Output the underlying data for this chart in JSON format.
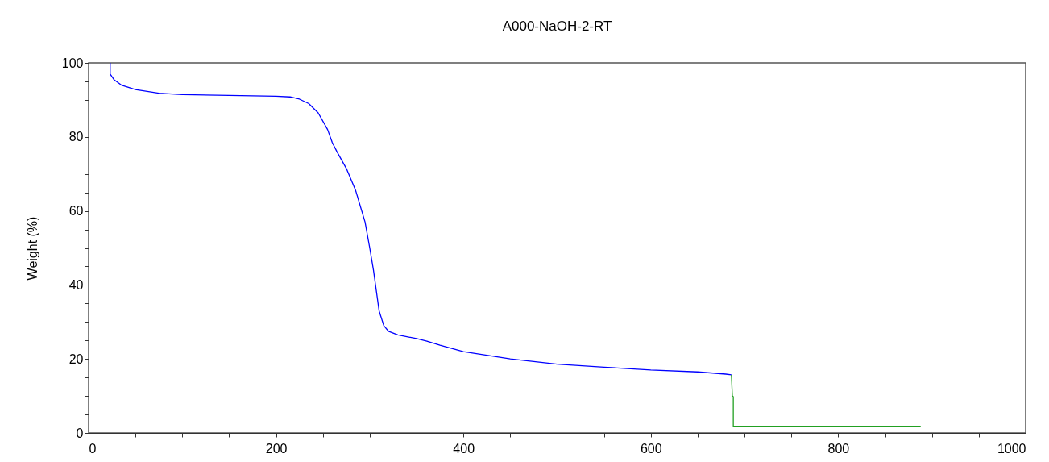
{
  "chart_data": {
    "type": "line",
    "title": "A000-NaOH-2-RT",
    "ylabel": "Weight (%)",
    "xlim": [
      0,
      1000
    ],
    "ylim": [
      0,
      100
    ],
    "xticks": [
      0,
      {
        "value": 50,
        "label": null
      },
      {
        "value": 100,
        "label": null
      },
      {
        "value": 150,
        "label": null
      },
      200,
      {
        "value": 250,
        "label": null
      },
      {
        "value": 300,
        "label": null
      },
      {
        "value": 350,
        "label": null
      },
      400,
      {
        "value": 450,
        "label": null
      },
      {
        "value": 500,
        "label": null
      },
      {
        "value": 550,
        "label": null
      },
      600,
      {
        "value": 650,
        "label": null
      },
      {
        "value": 700,
        "label": null
      },
      {
        "value": 750,
        "label": null
      },
      800,
      {
        "value": 850,
        "label": null
      },
      {
        "value": 900,
        "label": null
      },
      {
        "value": 950,
        "label": null
      },
      1000
    ],
    "yticks": [
      0,
      {
        "value": 5,
        "label": null
      },
      {
        "value": 10,
        "label": null
      },
      {
        "value": 15,
        "label": null
      },
      20,
      {
        "value": 25,
        "label": null
      },
      {
        "value": 30,
        "label": null
      },
      {
        "value": 35,
        "label": null
      },
      40,
      {
        "value": 45,
        "label": null
      },
      {
        "value": 50,
        "label": null
      },
      {
        "value": 55,
        "label": null
      },
      60,
      {
        "value": 65,
        "label": null
      },
      {
        "value": 70,
        "label": null
      },
      {
        "value": 75,
        "label": null
      },
      80,
      {
        "value": 85,
        "label": null
      },
      {
        "value": 90,
        "label": null
      },
      {
        "value": 95,
        "label": null
      },
      100
    ],
    "grid": false,
    "line_style": "solid",
    "marker": "none",
    "series": [
      {
        "color": "#0000ff",
        "x": [
          23,
          23,
          27,
          35,
          50,
          75,
          100,
          150,
          200,
          215,
          225,
          235,
          245,
          255,
          260,
          265,
          275,
          285,
          295,
          300,
          304,
          310,
          315,
          320,
          330,
          350,
          361,
          375,
          400,
          450,
          500,
          550,
          600,
          650,
          680,
          686
        ],
        "values": [
          100,
          97,
          95.5,
          94,
          92.8,
          91.8,
          91.4,
          91.2,
          91,
          90.8,
          90.2,
          89,
          86.5,
          82,
          78.5,
          76,
          71.5,
          65.5,
          57,
          50,
          44,
          33,
          29,
          27.5,
          26.5,
          25.5,
          24.8,
          23.7,
          22,
          20,
          18.6,
          17.8,
          17,
          16.5,
          15.9,
          15.7
        ]
      },
      {
        "color": "#22a022",
        "x": [
          686,
          687,
          688,
          688,
          888
        ],
        "values": [
          15.7,
          10,
          9.8,
          1.8,
          1.8
        ]
      }
    ]
  }
}
